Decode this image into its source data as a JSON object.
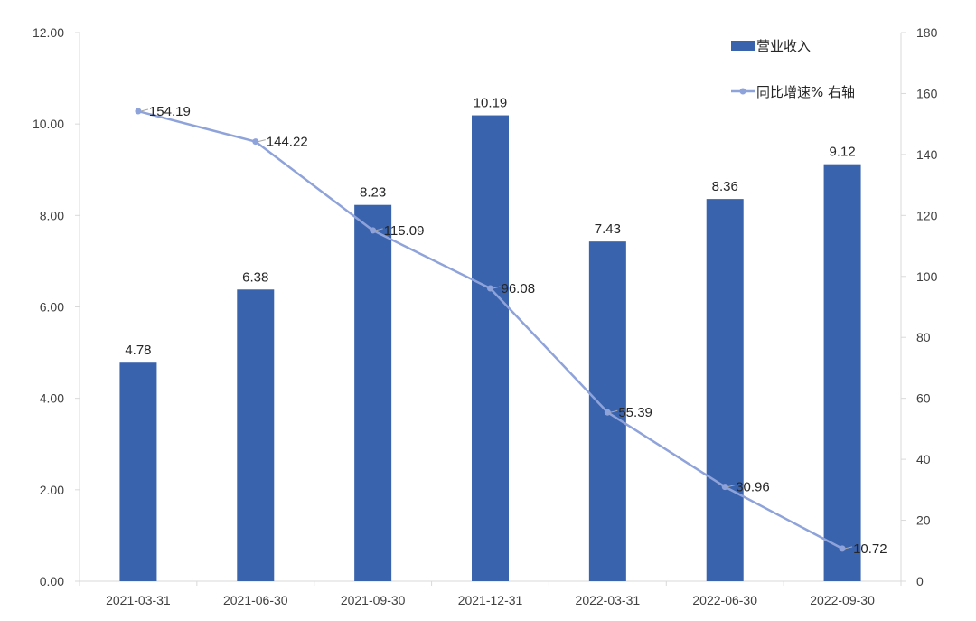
{
  "chart_data": {
    "type": "bar",
    "categories": [
      "2021-03-31",
      "2021-06-30",
      "2021-09-30",
      "2021-12-31",
      "2022-03-31",
      "2022-06-30",
      "2022-09-30"
    ],
    "series": [
      {
        "name": "营业收入",
        "type": "bar",
        "axis": "left",
        "color": "#3a63ad",
        "values": [
          4.78,
          6.38,
          8.23,
          10.19,
          7.43,
          8.36,
          9.12
        ],
        "labels": [
          "4.78",
          "6.38",
          "8.23",
          "10.19",
          "7.43",
          "8.36",
          "9.12"
        ]
      },
      {
        "name": "同比增速% 右轴",
        "type": "line",
        "axis": "right",
        "color": "#8fa3db",
        "values": [
          154.19,
          144.22,
          115.09,
          96.08,
          55.39,
          30.96,
          10.72
        ],
        "labels": [
          "154.19",
          "144.22",
          "115.09",
          "96.08",
          "55.39",
          "30.96",
          "10.72"
        ]
      }
    ],
    "y_left": {
      "range": [
        0,
        12
      ],
      "ticks": [
        "0.00",
        "2.00",
        "4.00",
        "6.00",
        "8.00",
        "10.00",
        "12.00"
      ]
    },
    "y_right": {
      "range": [
        0,
        180
      ],
      "ticks": [
        "0",
        "20",
        "40",
        "60",
        "80",
        "100",
        "120",
        "140",
        "160",
        "180"
      ]
    },
    "grid": false,
    "legend_position": "top-right"
  }
}
